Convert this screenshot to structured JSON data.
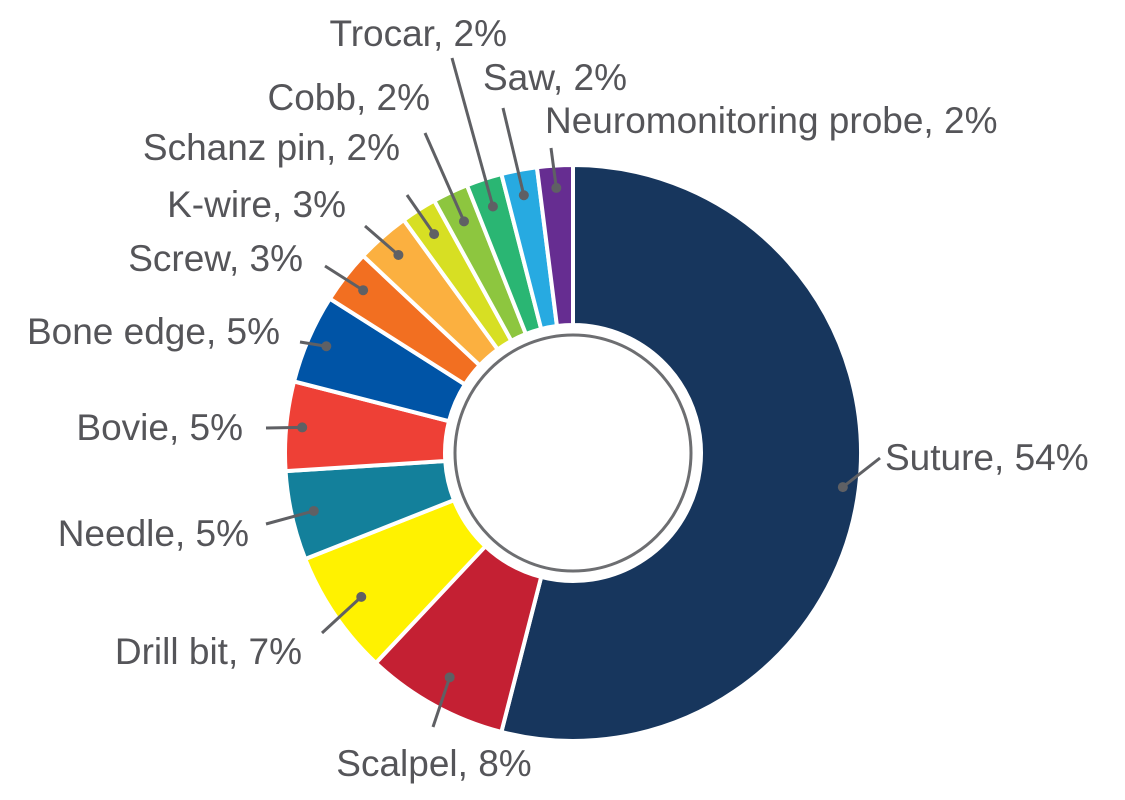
{
  "chart_data": {
    "type": "pie",
    "variant": "donut",
    "legend": "none",
    "label_format": "{name}, {value}%",
    "slices": [
      {
        "name": "Suture",
        "value": 54,
        "color": "#17365d"
      },
      {
        "name": "Scalpel",
        "value": 8,
        "color": "#c42033"
      },
      {
        "name": "Drill bit",
        "value": 7,
        "color": "#fff200"
      },
      {
        "name": "Needle",
        "value": 5,
        "color": "#13809b"
      },
      {
        "name": "Bovie",
        "value": 5,
        "color": "#ee4036"
      },
      {
        "name": "Bone edge",
        "value": 5,
        "color": "#0054a6"
      },
      {
        "name": "Screw",
        "value": 3,
        "color": "#f26f21"
      },
      {
        "name": "K-wire",
        "value": 3,
        "color": "#fbb040"
      },
      {
        "name": "Schanz pin",
        "value": 2,
        "color": "#d7df23"
      },
      {
        "name": "Cobb",
        "value": 2,
        "color": "#8dc63f"
      },
      {
        "name": "Trocar",
        "value": 2,
        "color": "#2ab673"
      },
      {
        "name": "Saw",
        "value": 2,
        "color": "#27aae1"
      },
      {
        "name": "Neuromonitoring probe",
        "value": 2,
        "color": "#662d91"
      }
    ]
  }
}
